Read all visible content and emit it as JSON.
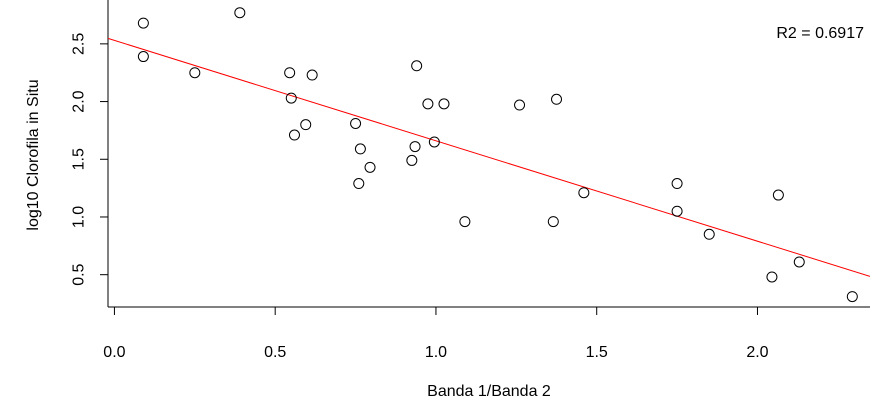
{
  "chart_data": {
    "type": "scatter",
    "title": "",
    "xlabel": "Banda 1/Banda 2",
    "ylabel": "log10 Clorofila in Situ",
    "xlim": [
      -0.02,
      2.35
    ],
    "ylim": [
      0.22,
      2.88
    ],
    "xticks": [
      0.0,
      0.5,
      1.0,
      1.5,
      2.0
    ],
    "xtick_labels": [
      "0.0",
      "0.5",
      "1.0",
      "1.5",
      "2.0"
    ],
    "yticks": [
      0.5,
      1.0,
      1.5,
      2.0,
      2.5
    ],
    "ytick_labels": [
      "0.5",
      "1.0",
      "1.5",
      "2.0",
      "2.5"
    ],
    "grid": false,
    "points": [
      {
        "x": 0.09,
        "y": 2.68
      },
      {
        "x": 0.09,
        "y": 2.39
      },
      {
        "x": 0.25,
        "y": 2.25
      },
      {
        "x": 0.39,
        "y": 2.77
      },
      {
        "x": 0.545,
        "y": 2.25
      },
      {
        "x": 0.55,
        "y": 2.03
      },
      {
        "x": 0.56,
        "y": 1.71
      },
      {
        "x": 0.595,
        "y": 1.8
      },
      {
        "x": 0.615,
        "y": 2.23
      },
      {
        "x": 0.75,
        "y": 1.81
      },
      {
        "x": 0.76,
        "y": 1.29
      },
      {
        "x": 0.765,
        "y": 1.59
      },
      {
        "x": 0.795,
        "y": 1.43
      },
      {
        "x": 0.925,
        "y": 1.49
      },
      {
        "x": 0.935,
        "y": 1.61
      },
      {
        "x": 0.94,
        "y": 2.31
      },
      {
        "x": 0.975,
        "y": 1.98
      },
      {
        "x": 0.995,
        "y": 1.65
      },
      {
        "x": 1.025,
        "y": 1.98
      },
      {
        "x": 1.09,
        "y": 0.96
      },
      {
        "x": 1.26,
        "y": 1.97
      },
      {
        "x": 1.365,
        "y": 0.96
      },
      {
        "x": 1.375,
        "y": 2.02
      },
      {
        "x": 1.46,
        "y": 1.21
      },
      {
        "x": 1.75,
        "y": 1.29
      },
      {
        "x": 1.75,
        "y": 1.05
      },
      {
        "x": 1.85,
        "y": 0.85
      },
      {
        "x": 2.045,
        "y": 0.48
      },
      {
        "x": 2.065,
        "y": 1.19
      },
      {
        "x": 2.13,
        "y": 0.61
      },
      {
        "x": 2.295,
        "y": 0.31
      }
    ],
    "regression_line": {
      "intercept": 2.53,
      "slope": -0.87,
      "color": "#ff0000"
    },
    "annotation": "R2 = 0.6917",
    "point_color": "#000000",
    "axes_color": "#000000"
  }
}
